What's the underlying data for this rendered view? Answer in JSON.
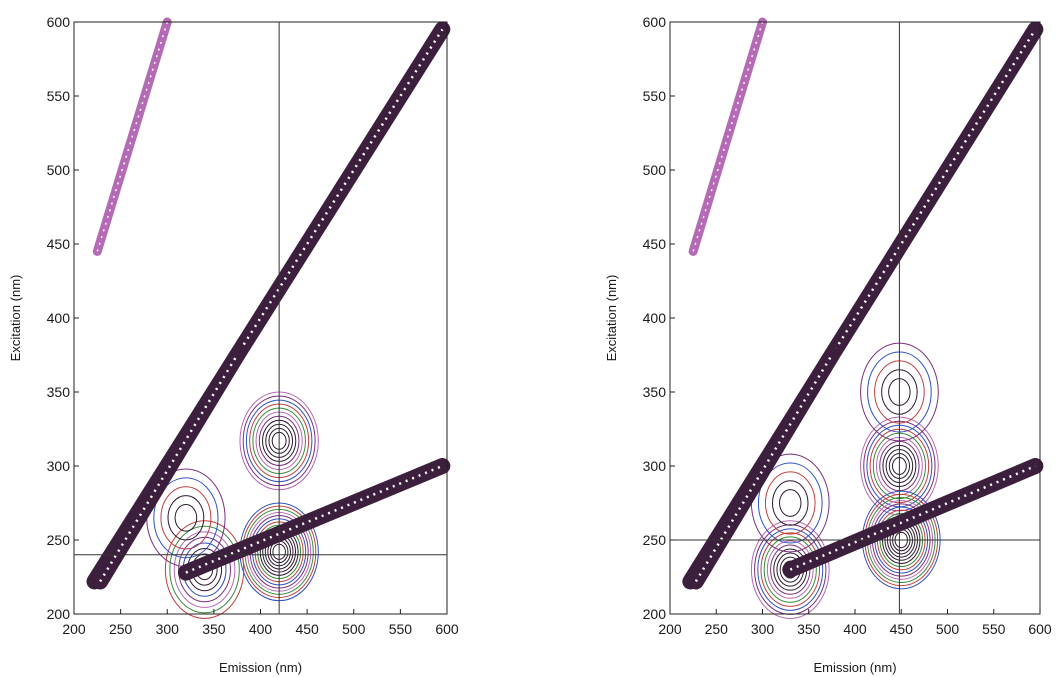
{
  "chart_data": [
    {
      "type": "contour",
      "xlabel": "Emission (nm)",
      "ylabel": "Excitation (nm)",
      "xlim": [
        200,
        600
      ],
      "ylim": [
        200,
        600
      ],
      "xticks": [
        "200",
        "250",
        "300",
        "350",
        "400",
        "450",
        "500",
        "550",
        "600"
      ],
      "yticks": [
        "200",
        "250",
        "300",
        "350",
        "400",
        "450",
        "500",
        "550",
        "600"
      ],
      "crosshair": {
        "emission": 420,
        "excitation": 240
      },
      "scatter_bands": [
        {
          "name": "rayleigh",
          "from": [
            222,
            222
          ],
          "to": [
            595,
            595
          ]
        },
        {
          "name": "raman",
          "from": [
            228,
            222
          ],
          "to": [
            375,
            375
          ]
        },
        {
          "name": "second-order",
          "from": [
            320,
            228
          ],
          "to": [
            595,
            300
          ]
        },
        {
          "name": "upper",
          "from": [
            225,
            445
          ],
          "to": [
            300,
            600
          ]
        }
      ],
      "peaks": [
        {
          "emission": 420,
          "excitation": 317,
          "intensity": "high"
        },
        {
          "emission": 420,
          "excitation": 242,
          "intensity": "very-high"
        },
        {
          "emission": 340,
          "excitation": 230,
          "intensity": "medium"
        },
        {
          "emission": 320,
          "excitation": 265,
          "intensity": "low"
        }
      ]
    },
    {
      "type": "contour",
      "xlabel": "Emission (nm)",
      "ylabel": "Excitation (nm)",
      "xlim": [
        200,
        600
      ],
      "ylim": [
        200,
        600
      ],
      "xticks": [
        "200",
        "250",
        "300",
        "350",
        "400",
        "450",
        "500",
        "550",
        "600"
      ],
      "yticks": [
        "200",
        "250",
        "300",
        "350",
        "400",
        "450",
        "500",
        "550",
        "600"
      ],
      "crosshair": {
        "emission": 448,
        "excitation": 250
      },
      "scatter_bands": [
        {
          "name": "rayleigh",
          "from": [
            222,
            222
          ],
          "to": [
            595,
            595
          ]
        },
        {
          "name": "raman",
          "from": [
            228,
            222
          ],
          "to": [
            375,
            375
          ]
        },
        {
          "name": "second-order",
          "from": [
            330,
            230
          ],
          "to": [
            595,
            300
          ]
        },
        {
          "name": "upper",
          "from": [
            225,
            445
          ],
          "to": [
            300,
            600
          ]
        }
      ],
      "peaks": [
        {
          "emission": 448,
          "excitation": 300,
          "intensity": "high"
        },
        {
          "emission": 448,
          "excitation": 350,
          "intensity": "low"
        },
        {
          "emission": 450,
          "excitation": 250,
          "intensity": "very-high"
        },
        {
          "emission": 330,
          "excitation": 230,
          "intensity": "high"
        },
        {
          "emission": 330,
          "excitation": 275,
          "intensity": "low"
        }
      ]
    }
  ],
  "colors": {
    "band": "#3c1f3d",
    "contours": [
      "#2b1a2e",
      "#7a2f7a",
      "#b46ab4",
      "#3a8a3a",
      "#c04040",
      "#3050c0"
    ]
  }
}
